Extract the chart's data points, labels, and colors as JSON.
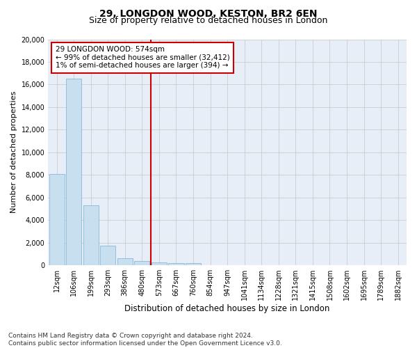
{
  "title1": "29, LONGDON WOOD, KESTON, BR2 6EN",
  "title2": "Size of property relative to detached houses in London",
  "xlabel": "Distribution of detached houses by size in London",
  "ylabel": "Number of detached properties",
  "categories": [
    "12sqm",
    "106sqm",
    "199sqm",
    "293sqm",
    "386sqm",
    "480sqm",
    "573sqm",
    "667sqm",
    "760sqm",
    "854sqm",
    "947sqm",
    "1041sqm",
    "1134sqm",
    "1228sqm",
    "1321sqm",
    "1415sqm",
    "1508sqm",
    "1602sqm",
    "1695sqm",
    "1789sqm",
    "1882sqm"
  ],
  "values": [
    8100,
    16500,
    5300,
    1750,
    650,
    350,
    250,
    200,
    200,
    0,
    0,
    0,
    0,
    0,
    0,
    0,
    0,
    0,
    0,
    0,
    0
  ],
  "bar_color": "#c8dff0",
  "bar_edge_color": "#7bafd4",
  "vline_x": 5.5,
  "vline_color": "#cc0000",
  "annotation_text": "29 LONGDON WOOD: 574sqm\n← 99% of detached houses are smaller (32,412)\n1% of semi-detached houses are larger (394) →",
  "annotation_box_color": "#ffffff",
  "annotation_box_edge_color": "#cc0000",
  "ylim": [
    0,
    20000
  ],
  "yticks": [
    0,
    2000,
    4000,
    6000,
    8000,
    10000,
    12000,
    14000,
    16000,
    18000,
    20000
  ],
  "grid_color": "#cccccc",
  "background_color": "#e8eef8",
  "footnote": "Contains HM Land Registry data © Crown copyright and database right 2024.\nContains public sector information licensed under the Open Government Licence v3.0.",
  "title1_fontsize": 10,
  "title2_fontsize": 9,
  "xlabel_fontsize": 8.5,
  "ylabel_fontsize": 8,
  "tick_fontsize": 7,
  "annotation_fontsize": 7.5,
  "footnote_fontsize": 6.5
}
